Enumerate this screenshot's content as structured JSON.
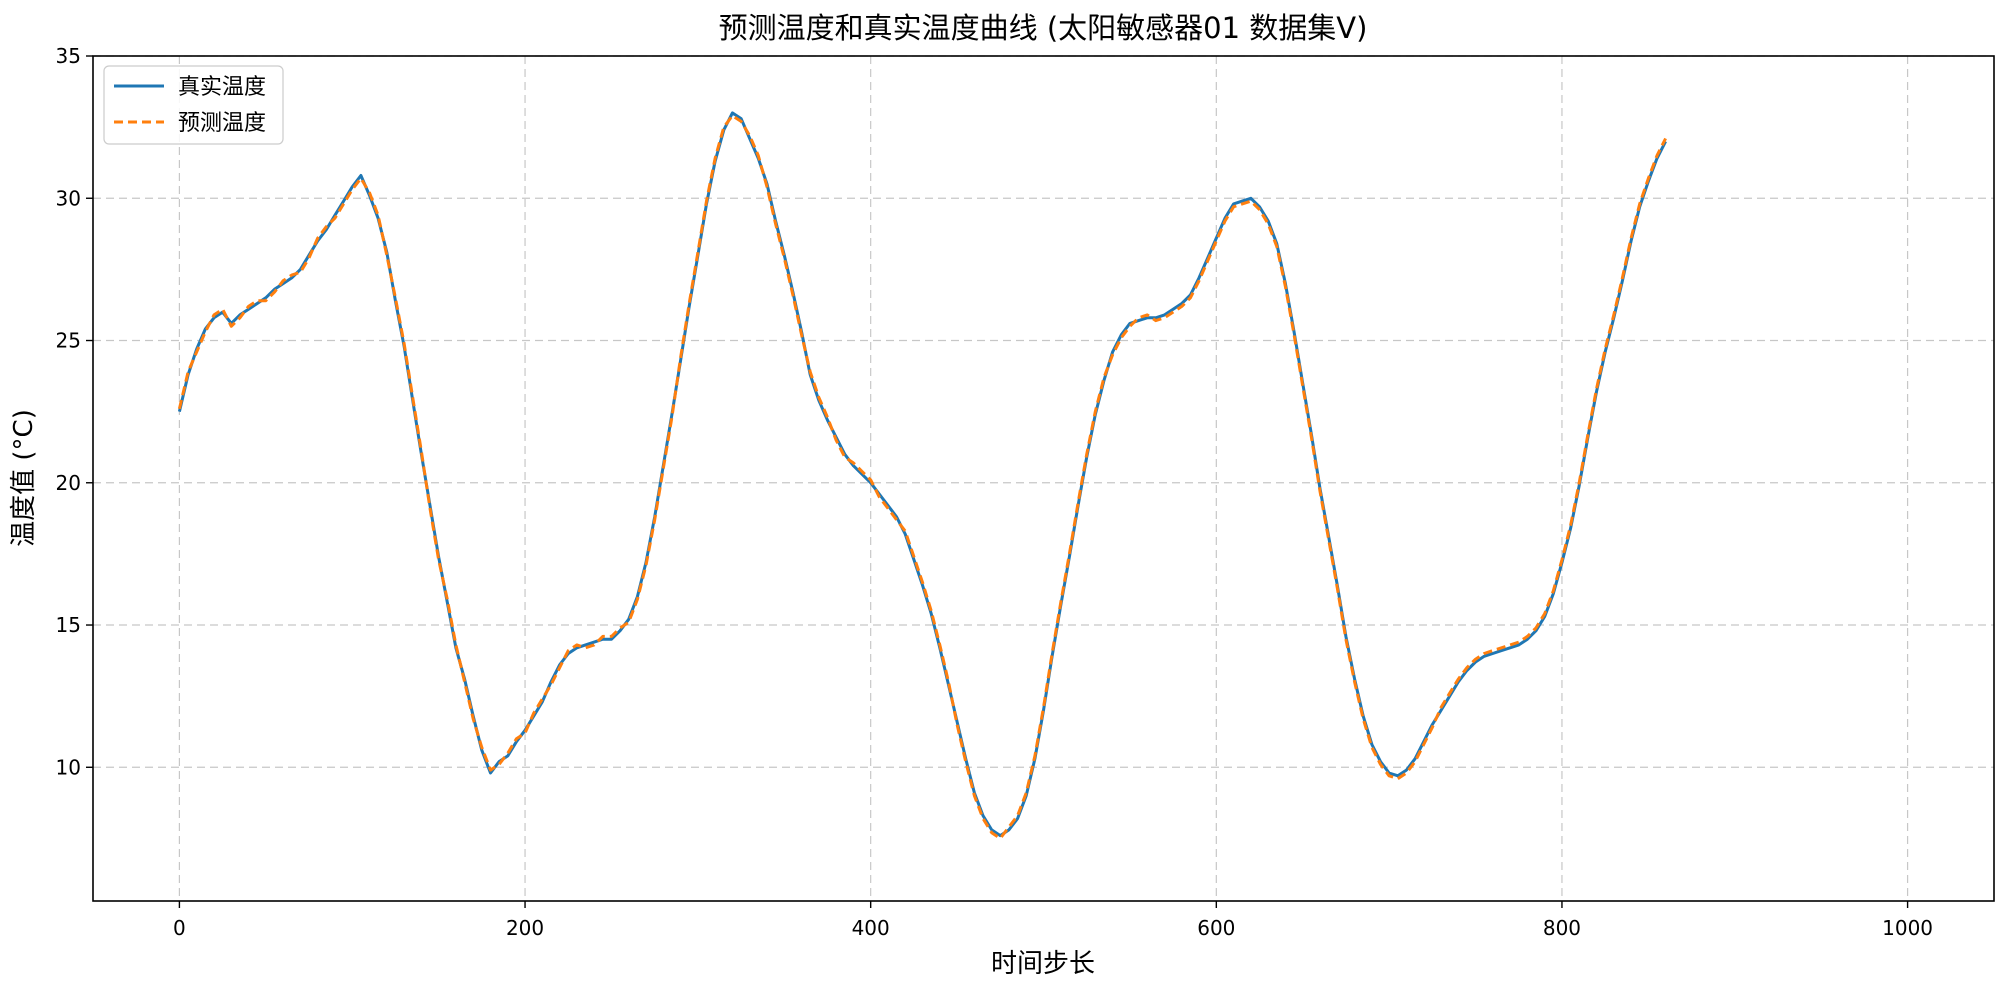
{
  "chart_data": {
    "type": "line",
    "title": "预测温度和真实温度曲线 (太阳敏感器01 数据集V)",
    "xlabel": "时间步长",
    "ylabel": "温度值 (°C)",
    "xlim": [
      -50,
      1050
    ],
    "ylim": [
      5.3,
      35
    ],
    "x_ticks": [
      0,
      200,
      400,
      600,
      800,
      1000
    ],
    "y_ticks": [
      10,
      15,
      20,
      25,
      30,
      35
    ],
    "grid": true,
    "legend_position": "top-left",
    "series": [
      {
        "name": "真实温度",
        "color": "#1f77b4",
        "style": "solid",
        "x_start": 0,
        "x_step": 5,
        "values": [
          22.5,
          23.8,
          24.7,
          25.4,
          25.8,
          26.0,
          25.6,
          25.9,
          26.1,
          26.3,
          26.5,
          26.8,
          27.0,
          27.2,
          27.5,
          28.0,
          28.5,
          28.9,
          29.4,
          29.9,
          30.4,
          30.8,
          30.1,
          29.3,
          28.1,
          26.4,
          24.8,
          22.9,
          21.0,
          19.2,
          17.4,
          15.8,
          14.2,
          13.1,
          11.8,
          10.6,
          9.8,
          10.2,
          10.4,
          10.9,
          11.3,
          11.8,
          12.3,
          13.0,
          13.6,
          14.0,
          14.2,
          14.3,
          14.4,
          14.5,
          14.5,
          14.8,
          15.2,
          16.0,
          17.2,
          18.8,
          20.6,
          22.4,
          24.3,
          26.2,
          28.0,
          29.8,
          31.3,
          32.4,
          33.0,
          32.8,
          32.1,
          31.4,
          30.5,
          29.2,
          28.0,
          26.7,
          25.3,
          23.8,
          22.9,
          22.2,
          21.6,
          21.0,
          20.6,
          20.3,
          20.0,
          19.6,
          19.2,
          18.8,
          18.2,
          17.3,
          16.4,
          15.4,
          14.2,
          12.9,
          11.6,
          10.3,
          9.1,
          8.3,
          7.8,
          7.6,
          7.8,
          8.2,
          9.0,
          10.3,
          12.0,
          13.9,
          15.7,
          17.4,
          19.2,
          20.9,
          22.4,
          23.6,
          24.6,
          25.2,
          25.6,
          25.7,
          25.8,
          25.8,
          25.9,
          26.1,
          26.3,
          26.6,
          27.2,
          27.9,
          28.6,
          29.3,
          29.8,
          29.9,
          30.0,
          29.7,
          29.2,
          28.4,
          27.0,
          25.3,
          23.5,
          21.7,
          19.8,
          18.1,
          16.4,
          14.6,
          13.1,
          11.8,
          10.8,
          10.2,
          9.8,
          9.7,
          9.9,
          10.3,
          10.9,
          11.5,
          12.0,
          12.5,
          13.0,
          13.4,
          13.7,
          13.9,
          14.0,
          14.1,
          14.2,
          14.3,
          14.5,
          14.8,
          15.3,
          16.1,
          17.2,
          18.4,
          19.9,
          21.6,
          23.2,
          24.6,
          25.8,
          27.1,
          28.5,
          29.7,
          30.6,
          31.4,
          32.0
        ]
      },
      {
        "name": "预测温度",
        "color": "#ff7f0e",
        "style": "dashed",
        "x_start": 0,
        "x_step": 5,
        "values": [
          22.6,
          23.9,
          24.6,
          25.3,
          25.9,
          26.1,
          25.5,
          25.8,
          26.2,
          26.4,
          26.4,
          26.7,
          27.1,
          27.3,
          27.4,
          27.9,
          28.6,
          29.0,
          29.3,
          29.8,
          30.3,
          30.7,
          30.2,
          29.4,
          28.0,
          26.5,
          24.9,
          23.0,
          21.1,
          19.1,
          17.3,
          15.9,
          14.3,
          13.0,
          11.7,
          10.7,
          9.9,
          10.1,
          10.5,
          11.0,
          11.2,
          11.9,
          12.4,
          12.9,
          13.5,
          14.1,
          14.3,
          14.2,
          14.3,
          14.6,
          14.6,
          14.9,
          15.1,
          15.9,
          17.1,
          18.7,
          20.5,
          22.3,
          24.4,
          26.3,
          28.1,
          29.9,
          31.4,
          32.5,
          32.9,
          32.7,
          32.2,
          31.5,
          30.4,
          29.1,
          27.9,
          26.6,
          25.2,
          23.9,
          23.0,
          22.3,
          21.5,
          20.9,
          20.7,
          20.4,
          20.1,
          19.5,
          19.1,
          18.7,
          18.3,
          17.4,
          16.5,
          15.5,
          14.3,
          13.0,
          11.5,
          10.2,
          9.0,
          8.2,
          7.7,
          7.5,
          7.9,
          8.3,
          9.1,
          10.4,
          12.1,
          14.0,
          15.8,
          17.5,
          19.3,
          21.0,
          22.5,
          23.7,
          24.5,
          25.1,
          25.5,
          25.8,
          25.9,
          25.7,
          25.8,
          26.0,
          26.2,
          26.5,
          27.1,
          27.8,
          28.5,
          29.2,
          29.7,
          29.8,
          29.9,
          29.6,
          29.1,
          28.3,
          26.9,
          25.2,
          23.4,
          21.6,
          19.7,
          18.0,
          16.3,
          14.5,
          13.0,
          11.7,
          10.7,
          10.1,
          9.7,
          9.6,
          9.8,
          10.2,
          10.8,
          11.4,
          12.1,
          12.6,
          13.1,
          13.5,
          13.8,
          14.0,
          14.1,
          14.2,
          14.3,
          14.4,
          14.6,
          14.9,
          15.4,
          16.2,
          17.3,
          18.5,
          20.0,
          21.7,
          23.3,
          24.7,
          25.9,
          27.2,
          28.6,
          29.8,
          30.7,
          31.5,
          32.1
        ]
      }
    ]
  }
}
